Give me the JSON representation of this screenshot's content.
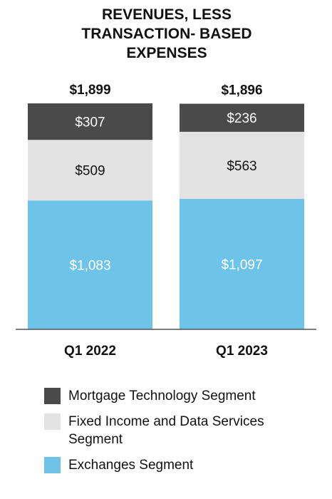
{
  "chart_data": {
    "type": "bar",
    "stacked": true,
    "title": "REVENUES, LESS TRANSACTION- BASED EXPENSES",
    "title_lines": [
      "REVENUES, LESS",
      "TRANSACTION- BASED",
      "EXPENSES"
    ],
    "categories": [
      "Q1 2022",
      "Q1 2023"
    ],
    "totals": [
      1899,
      1896
    ],
    "total_labels": [
      "$1,899",
      "$1,896"
    ],
    "series": [
      {
        "name": "Exchanges Segment",
        "values": [
          1083,
          1097
        ],
        "labels": [
          "$1,083",
          "$1,097"
        ],
        "color": "#6ec4e8",
        "label_color": "#ffffff"
      },
      {
        "name": "Fixed Income and Data Services Segment",
        "values": [
          509,
          563
        ],
        "labels": [
          "$509",
          "$563"
        ],
        "color": "#e3e3e3",
        "label_color": "#111111"
      },
      {
        "name": "Mortgage Technology Segment",
        "values": [
          307,
          236
        ],
        "labels": [
          "$307",
          "$236"
        ],
        "color": "#4a4a4a",
        "label_color": "#ffffff"
      }
    ],
    "ylim": [
      0,
      1899
    ],
    "grid": false,
    "legend_position": "bottom"
  },
  "legend": {
    "items": [
      {
        "label": "Mortgage Technology Segment",
        "color": "#4a4a4a"
      },
      {
        "label": "Fixed Income and Data Services Segment",
        "color": "#e3e3e3"
      },
      {
        "label": "Exchanges Segment",
        "color": "#6ec4e8"
      }
    ]
  },
  "colors": {
    "axis": "#555555",
    "text": "#111111"
  }
}
